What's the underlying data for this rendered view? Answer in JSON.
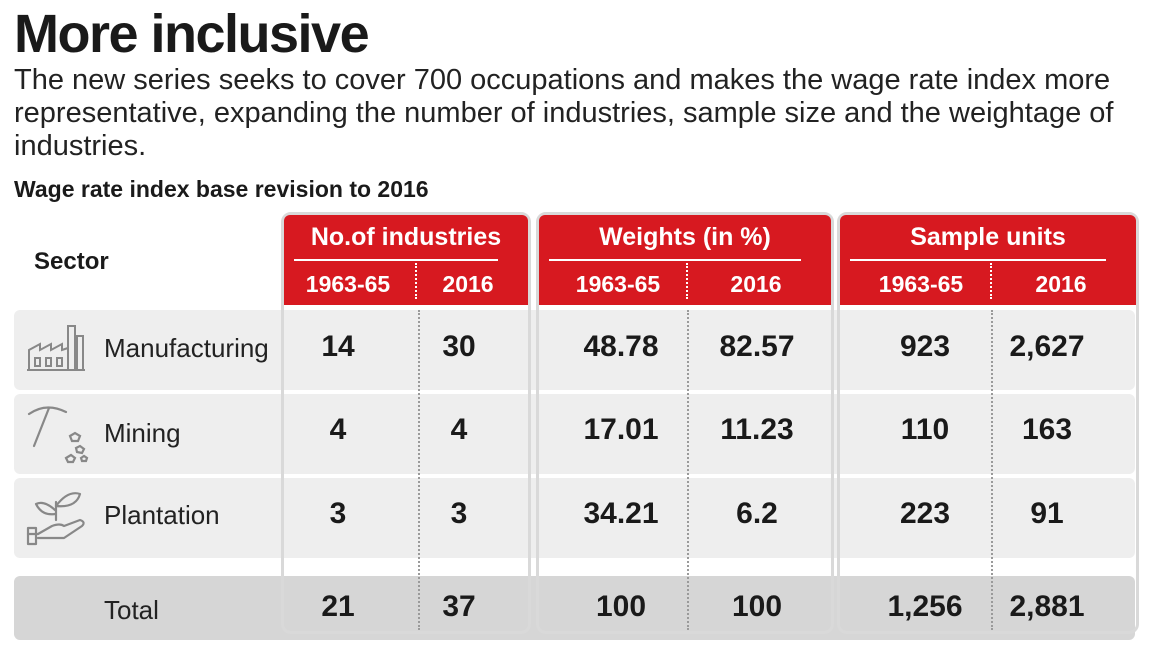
{
  "title": "More inclusive",
  "subtitle": "The new series seeks to cover 700 occupations and makes the wage rate index more representative, expanding the number of industries, sample size and the weightage of industries.",
  "chart_title": "Wage rate index base revision to 2016",
  "colors": {
    "header_red": "#d71920",
    "row_bg": "#eeeeee",
    "total_bg": "#d6d6d6",
    "group_border": "#d9d9d9"
  },
  "chart_data": {
    "type": "table",
    "row_header": "Sector",
    "groups": [
      {
        "name": "No.of industries",
        "columns": [
          "1963-65",
          "2016"
        ]
      },
      {
        "name": "Weights (in %)",
        "columns": [
          "1963-65",
          "2016"
        ]
      },
      {
        "name": "Sample units",
        "columns": [
          "1963-65",
          "2016"
        ]
      }
    ],
    "rows": [
      {
        "sector": "Manufacturing",
        "icon": "factory-icon",
        "values": [
          "14",
          "30",
          "48.78",
          "82.57",
          "923",
          "2,627"
        ]
      },
      {
        "sector": "Mining",
        "icon": "pickaxe-icon",
        "values": [
          "4",
          "4",
          "17.01",
          "11.23",
          "110",
          "163"
        ]
      },
      {
        "sector": "Plantation",
        "icon": "plant-hand-icon",
        "values": [
          "3",
          "3",
          "34.21",
          "6.2",
          "223",
          "91"
        ]
      }
    ],
    "total": {
      "label": "Total",
      "values": [
        "21",
        "37",
        "100",
        "100",
        "1,256",
        "2,881"
      ]
    }
  }
}
